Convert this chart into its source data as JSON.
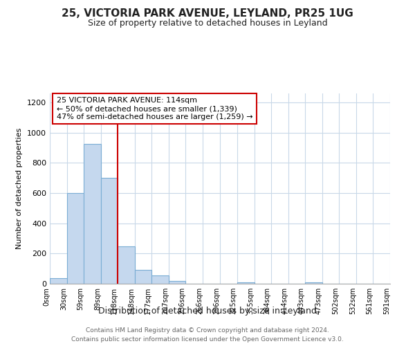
{
  "title_line1": "25, VICTORIA PARK AVENUE, LEYLAND, PR25 1UG",
  "title_line2": "Size of property relative to detached houses in Leyland",
  "xlabel": "Distribution of detached houses by size in Leyland",
  "ylabel": "Number of detached properties",
  "bar_edges": [
    0,
    30,
    59,
    89,
    118,
    148,
    177,
    207,
    236,
    266,
    296,
    325,
    355,
    384,
    414,
    443,
    473,
    502,
    532,
    561,
    591
  ],
  "bar_heights": [
    35,
    598,
    925,
    700,
    248,
    90,
    55,
    18,
    0,
    0,
    0,
    10,
    0,
    0,
    0,
    10,
    0,
    0,
    0,
    0
  ],
  "bar_color": "#c5d8ee",
  "bar_edgecolor": "#7aadd4",
  "property_line_x": 118,
  "property_line_color": "#cc0000",
  "ylim": [
    0,
    1260
  ],
  "yticks": [
    0,
    200,
    400,
    600,
    800,
    1000,
    1200
  ],
  "annotation_line1": "25 VICTORIA PARK AVENUE: 114sqm",
  "annotation_line2": "← 50% of detached houses are smaller (1,339)",
  "annotation_line3": "47% of semi-detached houses are larger (1,259) →",
  "footer_line1": "Contains HM Land Registry data © Crown copyright and database right 2024.",
  "footer_line2": "Contains public sector information licensed under the Open Government Licence v3.0.",
  "background_color": "#ffffff",
  "grid_color": "#c8d8e8",
  "annotation_border_color": "#cc0000",
  "title1_fontsize": 11,
  "title2_fontsize": 9
}
